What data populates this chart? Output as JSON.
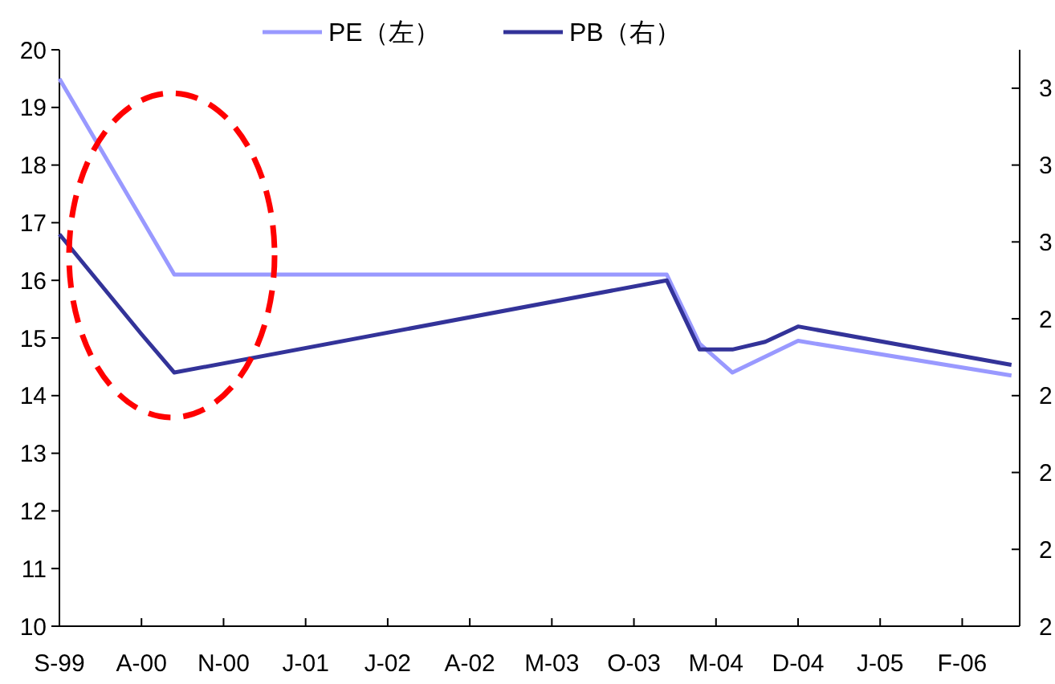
{
  "chart_data": {
    "type": "line",
    "legend": "top",
    "categories": [
      "S-99",
      null,
      null,
      null,
      null,
      "A-00",
      null,
      null,
      null,
      null,
      "N-00",
      null,
      null,
      null,
      null,
      "J-01",
      null,
      null,
      null,
      null,
      "J-02",
      null,
      null,
      null,
      null,
      "A-02",
      null,
      null,
      null,
      null,
      "M-03",
      null,
      null,
      null,
      null,
      "O-03",
      null,
      null,
      null,
      null,
      "M-04",
      null,
      null,
      null,
      null,
      "D-04",
      null,
      null,
      null,
      null,
      "J-05",
      null,
      null,
      null,
      null,
      "F-06",
      null,
      null,
      null
    ],
    "ylim": [
      10,
      20
    ],
    "yticks": [
      10,
      11,
      12,
      13,
      14,
      15,
      16,
      17,
      18,
      19,
      20
    ],
    "y2lim": [
      2.0,
      2.75
    ],
    "y2ticks": [
      {
        "value": 2.0,
        "label": "2"
      },
      {
        "value": 2.1,
        "label": "2"
      },
      {
        "value": 2.2,
        "label": "2"
      },
      {
        "value": 2.3,
        "label": "2"
      },
      {
        "value": 2.4,
        "label": "2"
      },
      {
        "value": 2.5,
        "label": "3"
      },
      {
        "value": 2.6,
        "label": "3"
      },
      {
        "value": 2.7,
        "label": "3"
      }
    ],
    "series": [
      {
        "name": "PE（左）",
        "color": "#9999ff",
        "values": [
          19.5,
          null,
          null,
          null,
          null,
          null,
          null,
          16.1,
          null,
          null,
          null,
          null,
          null,
          null,
          null,
          null,
          null,
          null,
          null,
          null,
          null,
          null,
          null,
          null,
          null,
          null,
          null,
          null,
          null,
          null,
          null,
          null,
          null,
          null,
          null,
          null,
          null,
          16.1,
          null,
          14.9,
          null,
          14.4,
          null,
          null,
          null,
          14.95,
          null,
          null,
          null,
          null,
          null,
          null,
          null,
          null,
          null,
          null,
          null,
          null,
          14.35
        ]
      },
      {
        "name": "PB（右）",
        "color": "#333399",
        "axis": "y2",
        "values": [
          2.51,
          null,
          null,
          null,
          null,
          2.38,
          null,
          2.33,
          null,
          null,
          null,
          null,
          null,
          null,
          null,
          null,
          null,
          null,
          null,
          null,
          null,
          null,
          null,
          null,
          null,
          null,
          null,
          null,
          null,
          null,
          null,
          null,
          null,
          null,
          null,
          null,
          null,
          2.45,
          null,
          2.36,
          null,
          2.36,
          null,
          2.37,
          null,
          2.39,
          null,
          null,
          null,
          null,
          null,
          null,
          null,
          null,
          null,
          null,
          null,
          null,
          2.34
        ]
      }
    ]
  }
}
